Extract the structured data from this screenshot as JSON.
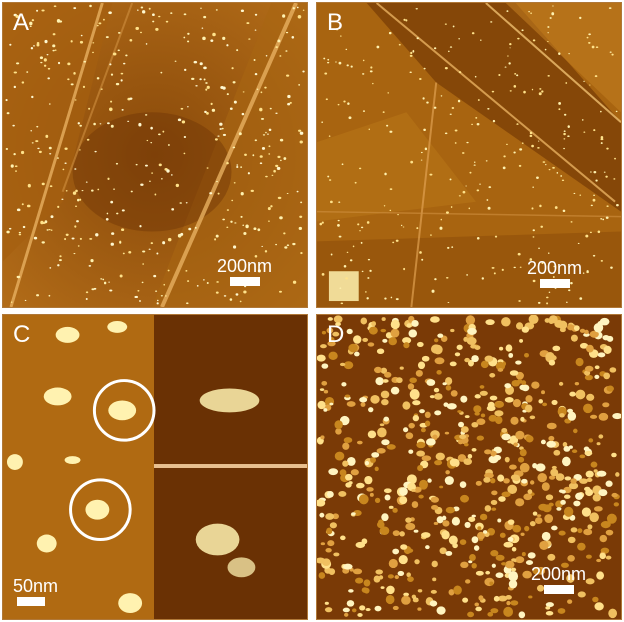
{
  "panels": {
    "a": {
      "label": "A",
      "scale_label": "200nm"
    },
    "b": {
      "label": "B",
      "scale_label": "200nm"
    },
    "c": {
      "label": "C",
      "scale_label": "50nm"
    },
    "d": {
      "label": "D",
      "scale_label": "200nm"
    }
  },
  "colors": {
    "background": "#ffffff",
    "afm_dark": "#5a2a00",
    "afm_mid": "#a8620e",
    "afm_light": "#d89a3c",
    "particle": "#fff2b0",
    "border": "#b07838"
  }
}
